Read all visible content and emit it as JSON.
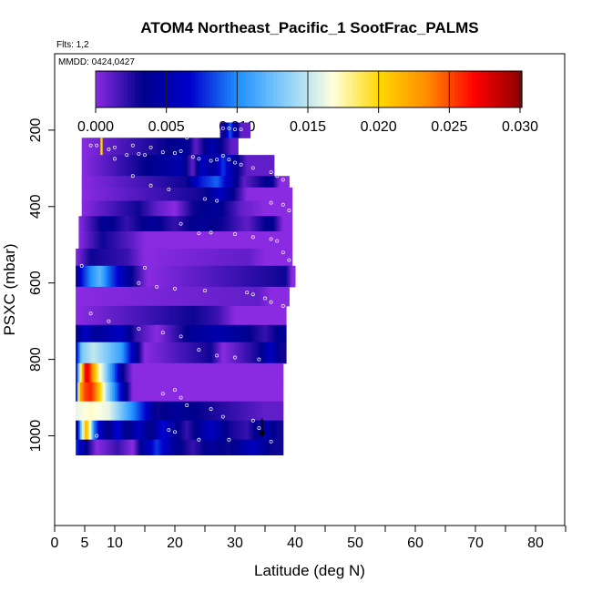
{
  "chart_data": {
    "type": "heatmap",
    "title": "ATOM4 Northeast_Pacific_1 SootFrac_PALMS",
    "flights_label": "Flts: 1,2",
    "dates_label": "MMDD: 0424,0427",
    "xlabel": "Latitude (deg N)",
    "ylabel": "PSXC (mbar)",
    "xlim": [
      0,
      85
    ],
    "ylim": [
      1000,
      0
    ],
    "x_ticks": [
      0,
      5,
      10,
      20,
      30,
      40,
      50,
      60,
      70,
      80
    ],
    "y_ticks": [
      200,
      400,
      600,
      800,
      1000
    ],
    "colorbar": {
      "ticks": [
        "0.000",
        "0.005",
        "0.010",
        "0.015",
        "0.020",
        "0.025",
        "0.030"
      ],
      "range": [
        0,
        0.03
      ],
      "colors": [
        "#8a2be2",
        "#00008b",
        "#0000cd",
        "#1e90ff",
        "#87cefa",
        "#ffffe0",
        "#ffd700",
        "#ff8c00",
        "#ff0000",
        "#8b0000"
      ]
    },
    "bands": [
      {
        "p": [
          180,
          220
        ],
        "lat": [
          27.5,
          32.5
        ],
        "segments": [
          [
            27.5,
            0.002
          ],
          [
            28.5,
            0.005
          ],
          [
            29.2,
            0.009
          ],
          [
            30.0,
            0.005
          ],
          [
            31.0,
            0.001
          ]
        ]
      },
      {
        "p": [
          220,
          265
        ],
        "lat": [
          4.5,
          30.5
        ],
        "segments": [
          [
            4.5,
            0.0
          ],
          [
            22.0,
            0.004
          ],
          [
            23.5,
            0.001
          ],
          [
            26.0,
            0.005
          ],
          [
            28.0,
            0.003
          ],
          [
            29.5,
            0.001
          ]
        ]
      },
      {
        "p": [
          265,
          320
        ],
        "lat": [
          4.5,
          36.5
        ],
        "segments": [
          [
            4.5,
            0.0
          ],
          [
            21.0,
            0.005
          ],
          [
            23.0,
            0.001
          ],
          [
            24.5,
            0.006
          ],
          [
            26.5,
            0.004
          ],
          [
            28.0,
            0.008
          ],
          [
            30.0,
            0.004
          ],
          [
            32.0,
            0.001
          ]
        ]
      },
      {
        "p": [
          320,
          350
        ],
        "lat": [
          4.5,
          39.0
        ],
        "segments": [
          [
            4.5,
            0.0
          ],
          [
            22.0,
            0.003
          ],
          [
            24.0,
            0.007
          ],
          [
            27.0,
            0.009
          ],
          [
            29.5,
            0.005
          ],
          [
            31.5,
            0.001
          ],
          [
            36.0,
            0.004
          ],
          [
            37.5,
            0.0
          ]
        ]
      },
      {
        "p": [
          350,
          385
        ],
        "lat": [
          4.5,
          39.5
        ],
        "segments": [
          [
            4.5,
            0.0
          ],
          [
            25.0,
            0.003
          ],
          [
            27.5,
            0.006
          ],
          [
            30.0,
            0.003
          ],
          [
            32.0,
            0.0
          ]
        ]
      },
      {
        "p": [
          385,
          425
        ],
        "lat": [
          4.5,
          39.5
        ],
        "segments": [
          [
            4.5,
            0.0
          ],
          [
            14.0,
            0.003
          ],
          [
            17.0,
            0.001
          ],
          [
            20.0,
            0.0
          ],
          [
            23.0,
            0.003
          ],
          [
            27.0,
            0.004
          ],
          [
            31.0,
            0.001
          ],
          [
            35.0,
            0.0
          ]
        ]
      },
      {
        "p": [
          425,
          465
        ],
        "lat": [
          4.0,
          39.5
        ],
        "segments": [
          [
            4.0,
            0.0
          ],
          [
            8.5,
            0.004
          ],
          [
            12.0,
            0.002
          ],
          [
            16.0,
            0.004
          ],
          [
            20.0,
            0.002
          ],
          [
            24.0,
            0.004
          ],
          [
            28.0,
            0.003
          ],
          [
            32.0,
            0.001
          ],
          [
            36.0,
            0.004
          ],
          [
            38.0,
            0.0
          ]
        ]
      },
      {
        "p": [
          465,
          510
        ],
        "lat": [
          4.0,
          39.5
        ],
        "segments": [
          [
            4.0,
            0.0
          ],
          [
            8.0,
            0.003
          ],
          [
            13.0,
            0.001
          ],
          [
            15.0,
            0.0
          ]
        ]
      },
      {
        "p": [
          510,
          555
        ],
        "lat": [
          3.5,
          39.5
        ],
        "segments": [
          [
            3.5,
            0.0
          ],
          [
            6.0,
            0.003
          ],
          [
            12.0,
            0.002
          ],
          [
            15.0,
            0.0
          ],
          [
            32.0,
            0.001
          ],
          [
            35.0,
            0.0
          ]
        ]
      },
      {
        "p": [
          555,
          610
        ],
        "lat": [
          3.5,
          40.0
        ],
        "segments": [
          [
            3.5,
            0.003
          ],
          [
            4.5,
            0.007
          ],
          [
            6.0,
            0.01
          ],
          [
            7.5,
            0.012
          ],
          [
            9.0,
            0.009
          ],
          [
            11.0,
            0.006
          ],
          [
            13.0,
            0.003
          ],
          [
            15.5,
            0.0
          ],
          [
            38.5,
            0.003
          ],
          [
            39.5,
            0.0
          ]
        ]
      },
      {
        "p": [
          610,
          660
        ],
        "lat": [
          3.5,
          39.0
        ],
        "segments": [
          [
            3.5,
            0.0
          ],
          [
            34.0,
            0.001
          ],
          [
            36.0,
            0.0
          ]
        ]
      },
      {
        "p": [
          660,
          710
        ],
        "lat": [
          3.5,
          38.5
        ],
        "segments": [
          [
            3.5,
            0.0
          ],
          [
            23.0,
            0.003
          ],
          [
            27.0,
            0.002
          ],
          [
            30.0,
            0.0
          ]
        ]
      },
      {
        "p": [
          710,
          755
        ],
        "lat": [
          3.5,
          38.5
        ],
        "segments": [
          [
            3.5,
            0.003
          ],
          [
            5.0,
            0.006
          ],
          [
            7.0,
            0.004
          ],
          [
            11.0,
            0.006
          ],
          [
            13.5,
            0.002
          ],
          [
            17.0,
            0.0
          ],
          [
            23.0,
            0.004
          ],
          [
            27.0,
            0.005
          ],
          [
            31.0,
            0.004
          ],
          [
            35.0,
            0.002
          ],
          [
            38.0,
            0.004
          ]
        ]
      },
      {
        "p": [
          755,
          810
        ],
        "lat": [
          3.5,
          38.5
        ],
        "segments": [
          [
            3.5,
            0.005
          ],
          [
            4.5,
            0.013
          ],
          [
            6.5,
            0.015
          ],
          [
            11.0,
            0.011
          ],
          [
            13.0,
            0.006
          ],
          [
            15.0,
            0.0
          ],
          [
            26.0,
            0.003
          ],
          [
            28.0,
            0.0
          ],
          [
            34.0,
            0.003
          ],
          [
            36.0,
            0.006
          ],
          [
            37.5,
            0.003
          ]
        ]
      },
      {
        "p": [
          810,
          860
        ],
        "lat": [
          3.5,
          38.0
        ],
        "segments": [
          [
            3.5,
            0.005
          ],
          [
            4.5,
            0.02
          ],
          [
            5.2,
            0.028
          ],
          [
            5.8,
            0.026
          ],
          [
            6.5,
            0.022
          ],
          [
            7.5,
            0.017
          ],
          [
            9.0,
            0.012
          ],
          [
            10.5,
            0.007
          ],
          [
            11.5,
            0.003
          ],
          [
            13.0,
            0.0
          ]
        ]
      },
      {
        "p": [
          860,
          910
        ],
        "lat": [
          3.5,
          38.0
        ],
        "segments": [
          [
            3.5,
            0.003
          ],
          [
            4.2,
            0.022
          ],
          [
            5.0,
            0.025
          ],
          [
            6.0,
            0.026
          ],
          [
            7.0,
            0.023
          ],
          [
            8.5,
            0.015
          ],
          [
            10.0,
            0.01
          ],
          [
            11.5,
            0.005
          ],
          [
            13.0,
            0.0
          ]
        ]
      },
      {
        "p": [
          910,
          960
        ],
        "lat": [
          3.5,
          38.0
        ],
        "segments": [
          [
            3.5,
            0.016
          ],
          [
            6.0,
            0.017
          ],
          [
            9.0,
            0.016
          ],
          [
            11.0,
            0.013
          ],
          [
            13.0,
            0.01
          ],
          [
            15.0,
            0.007
          ],
          [
            17.0,
            0.003
          ],
          [
            20.0,
            0.004
          ],
          [
            25.0,
            0.003
          ],
          [
            30.0,
            0.002
          ],
          [
            35.0,
            0.001
          ]
        ]
      },
      {
        "p": [
          960,
          1010
        ],
        "lat": [
          3.5,
          38.0
        ],
        "segments": [
          [
            3.5,
            0.002
          ],
          [
            4.5,
            0.014
          ],
          [
            5.2,
            0.022
          ],
          [
            5.8,
            0.018
          ],
          [
            6.5,
            0.01
          ],
          [
            7.5,
            0.006
          ],
          [
            9.0,
            0.003
          ],
          [
            10.5,
            0.007
          ],
          [
            12.0,
            0.003
          ],
          [
            14.0,
            0.006
          ],
          [
            16.0,
            0.003
          ],
          [
            18.0,
            0.007
          ],
          [
            20.0,
            0.004
          ],
          [
            22.0,
            0.002
          ],
          [
            26.0,
            0.006
          ],
          [
            29.0,
            0.003
          ],
          [
            32.0,
            0.002
          ],
          [
            35.0,
            0.005
          ],
          [
            37.0,
            0.003
          ]
        ]
      },
      {
        "p": [
          1010,
          1050
        ],
        "lat": [
          3.5,
          38.0
        ],
        "segments": [
          [
            3.5,
            0.008
          ],
          [
            5.0,
            0.004
          ],
          [
            7.0,
            0.0
          ],
          [
            10.5,
            0.002
          ],
          [
            13.0,
            0.0
          ],
          [
            14.5,
            0.004
          ],
          [
            17.0,
            0.008
          ],
          [
            20.0,
            0.004
          ],
          [
            23.0,
            0.002
          ],
          [
            26.0,
            0.004
          ],
          [
            29.0,
            0.003
          ],
          [
            33.0,
            0.006
          ],
          [
            36.0,
            0.003
          ]
        ]
      }
    ],
    "points": [
      [
        6,
        240
      ],
      [
        7,
        240
      ],
      [
        9,
        250
      ],
      [
        10,
        245
      ],
      [
        12,
        265
      ],
      [
        13,
        240
      ],
      [
        14,
        262
      ],
      [
        15,
        265
      ],
      [
        16,
        245
      ],
      [
        18,
        258
      ],
      [
        20,
        260
      ],
      [
        21,
        255
      ],
      [
        23,
        270
      ],
      [
        24,
        275
      ],
      [
        26,
        280
      ],
      [
        27,
        277
      ],
      [
        28,
        267
      ],
      [
        29,
        277
      ],
      [
        30,
        285
      ],
      [
        31,
        290
      ],
      [
        33,
        299
      ],
      [
        36,
        310
      ],
      [
        37,
        320
      ],
      [
        38,
        330
      ],
      [
        22,
        220
      ],
      [
        28,
        195
      ],
      [
        29,
        195
      ],
      [
        30,
        198
      ],
      [
        31,
        198
      ],
      [
        10,
        275
      ],
      [
        13,
        320
      ],
      [
        16,
        345
      ],
      [
        19,
        355
      ],
      [
        25,
        380
      ],
      [
        27,
        385
      ],
      [
        36,
        390
      ],
      [
        38,
        395
      ],
      [
        39,
        410
      ],
      [
        21,
        445
      ],
      [
        24,
        470
      ],
      [
        26,
        468
      ],
      [
        30,
        472
      ],
      [
        33,
        480
      ],
      [
        36,
        485
      ],
      [
        37,
        490
      ],
      [
        38,
        520
      ],
      [
        39,
        540
      ],
      [
        4.5,
        555
      ],
      [
        14,
        600
      ],
      [
        15,
        560
      ],
      [
        17,
        610
      ],
      [
        20,
        615
      ],
      [
        25,
        620
      ],
      [
        32,
        625
      ],
      [
        33,
        630
      ],
      [
        35,
        640
      ],
      [
        36,
        650
      ],
      [
        38,
        660
      ],
      [
        6,
        680
      ],
      [
        9,
        700
      ],
      [
        14,
        720
      ],
      [
        18,
        730
      ],
      [
        21,
        740
      ],
      [
        24,
        775
      ],
      [
        27,
        790
      ],
      [
        30,
        795
      ],
      [
        34,
        800
      ],
      [
        18,
        890
      ],
      [
        20,
        880
      ],
      [
        21,
        900
      ],
      [
        22,
        920
      ],
      [
        26,
        930
      ],
      [
        28,
        950
      ],
      [
        33,
        960
      ],
      [
        34,
        980
      ],
      [
        19,
        985
      ],
      [
        20,
        990
      ],
      [
        7,
        1000
      ],
      [
        24,
        1010
      ],
      [
        29,
        1010
      ],
      [
        36,
        1015
      ]
    ],
    "marker_yellow": {
      "lat": 7.8,
      "p": [
        220,
        265
      ]
    },
    "marker_black_arrow": {
      "lat": 34.5,
      "p": [
        955,
        1000
      ]
    }
  }
}
